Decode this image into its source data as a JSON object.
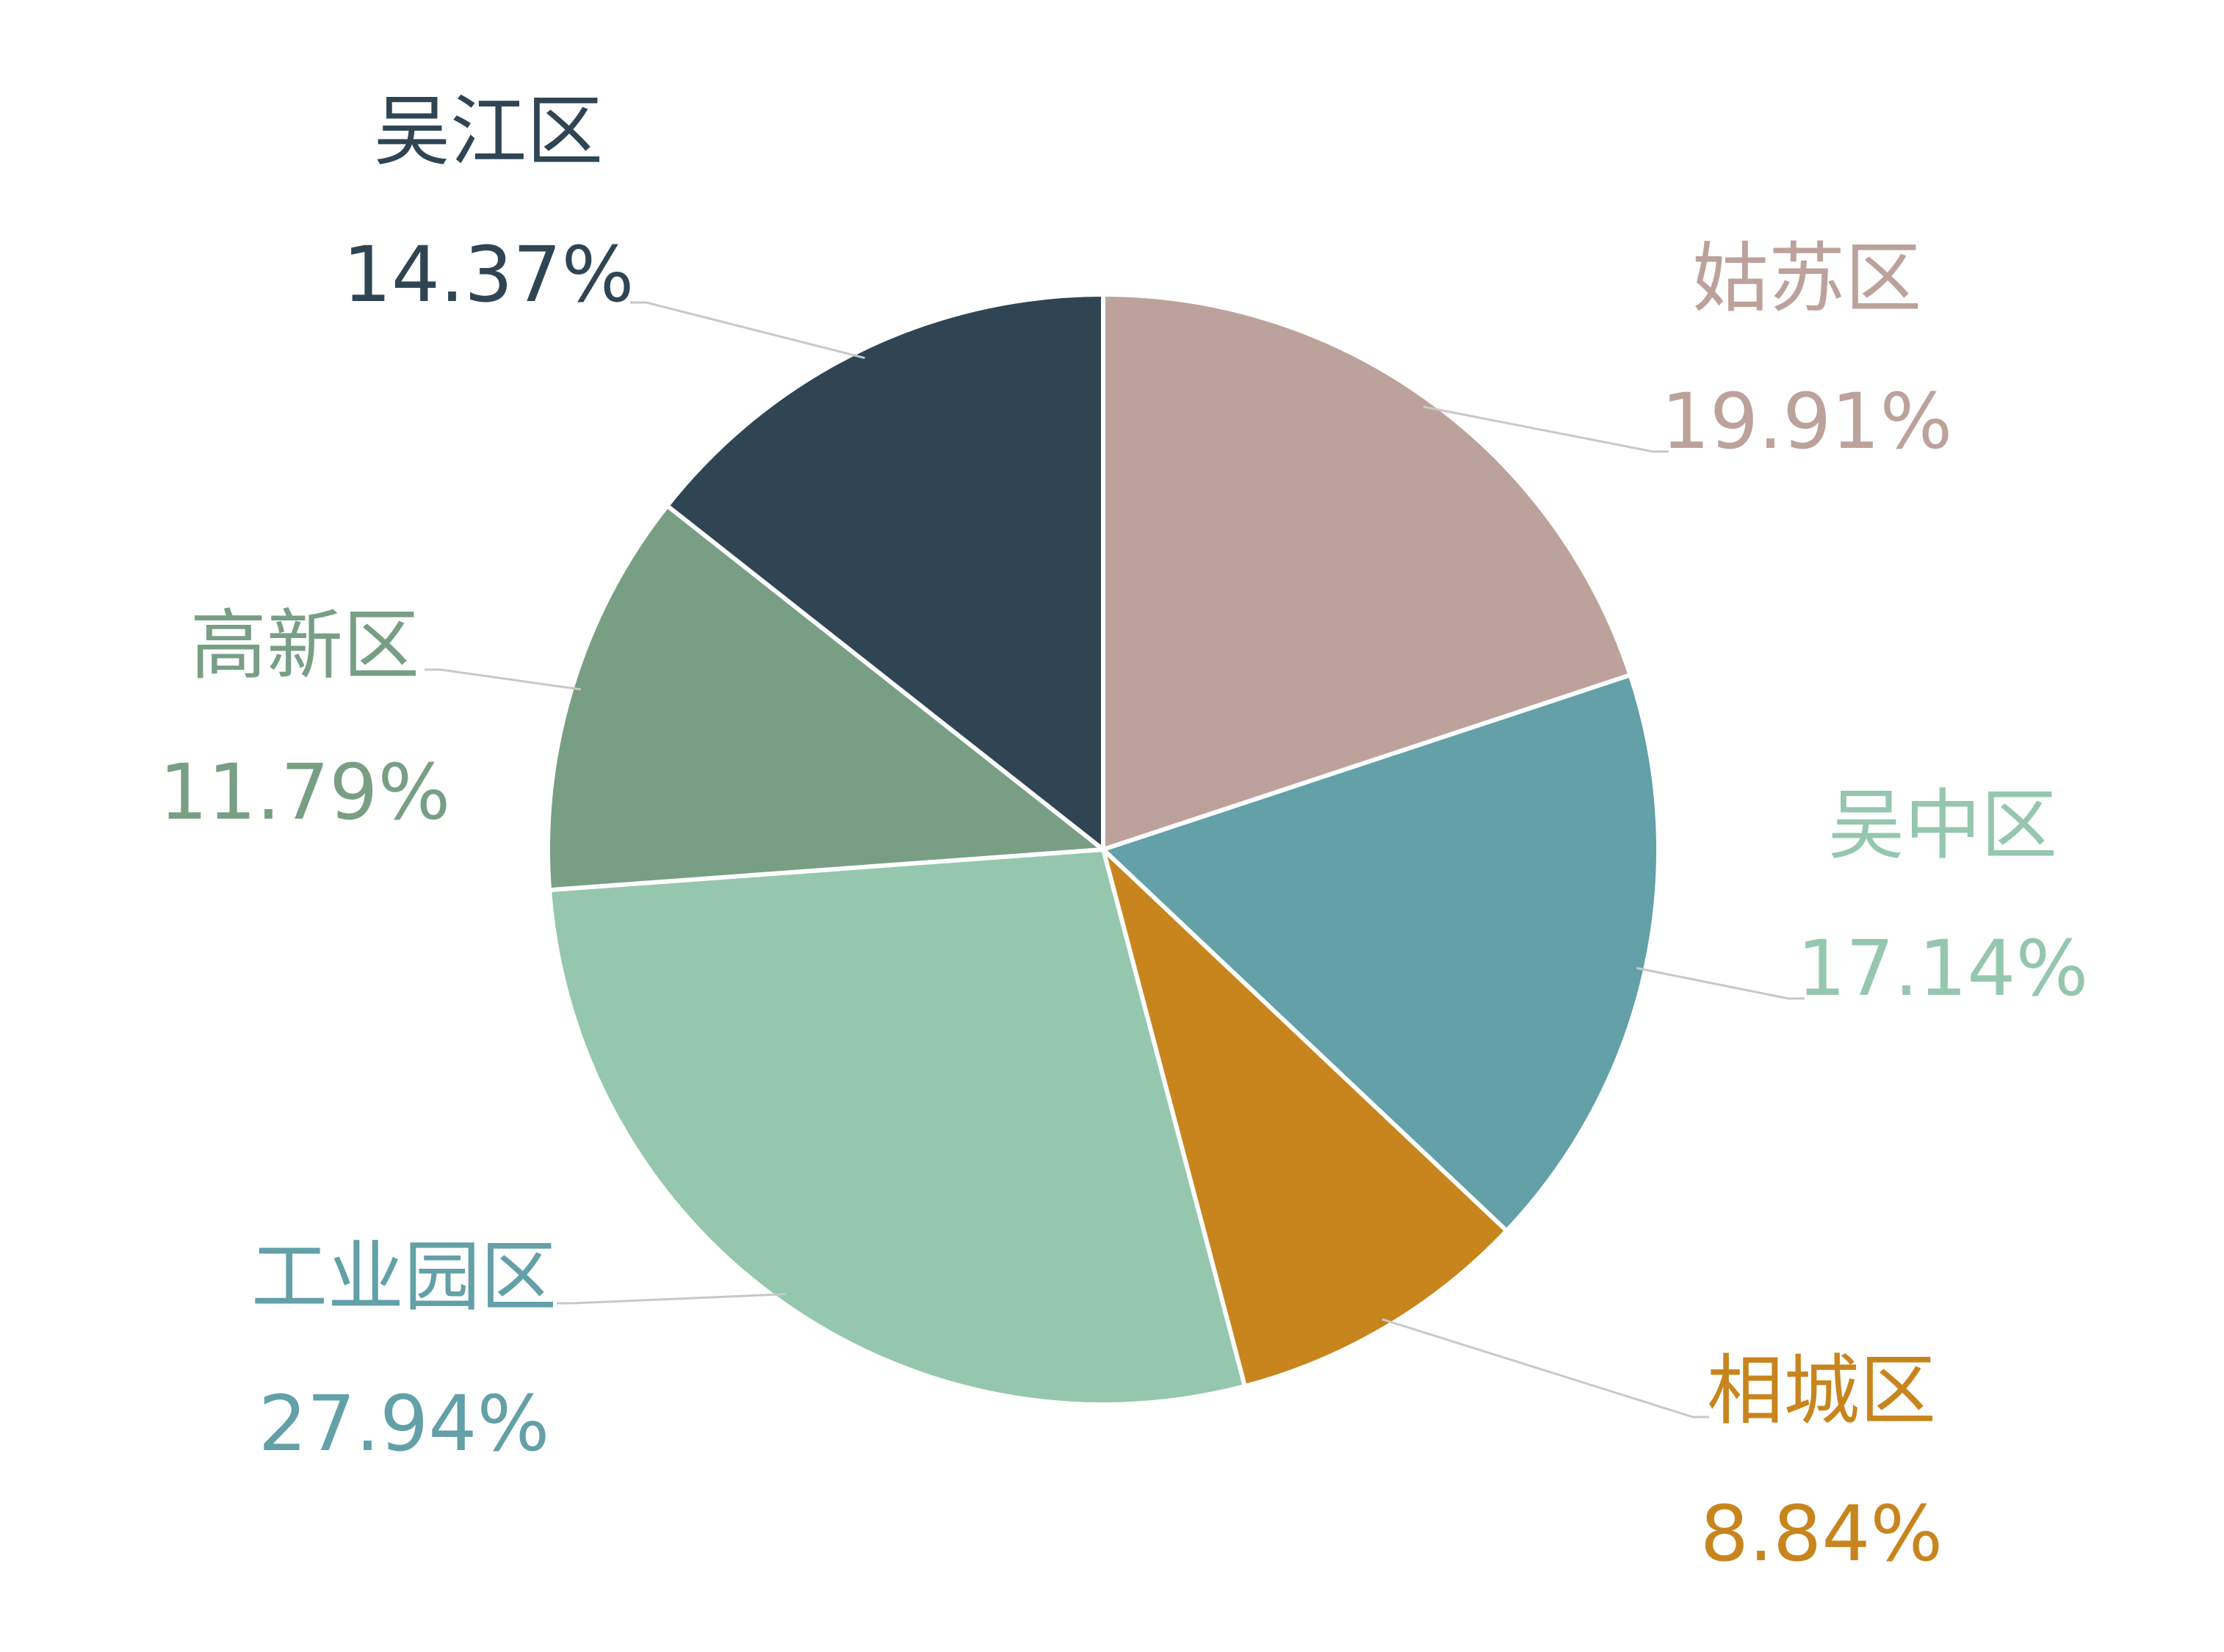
{
  "chart_data": {
    "type": "pie",
    "title": "",
    "legend": "none",
    "slices": [
      {
        "name": "姑苏区",
        "value": 19.91,
        "label": "19.91%",
        "color": "#bca29a"
      },
      {
        "name": "吴中区",
        "value": 17.14,
        "label": "17.14%",
        "color": "#63a0a8",
        "label_color": "#95c7ae"
      },
      {
        "name": "相城区",
        "value": 8.84,
        "label": "8.84%",
        "color": "#c8851e"
      },
      {
        "name": "工业园区",
        "value": 27.94,
        "label": "27.94%",
        "color": "#95c7ae",
        "label_color": "#63a0a8"
      },
      {
        "name": "高新区",
        "value": 11.79,
        "label": "11.79%",
        "color": "#789f84"
      },
      {
        "name": "吴江区",
        "value": 14.37,
        "label": "14.37%",
        "color": "#2f4554"
      }
    ]
  }
}
